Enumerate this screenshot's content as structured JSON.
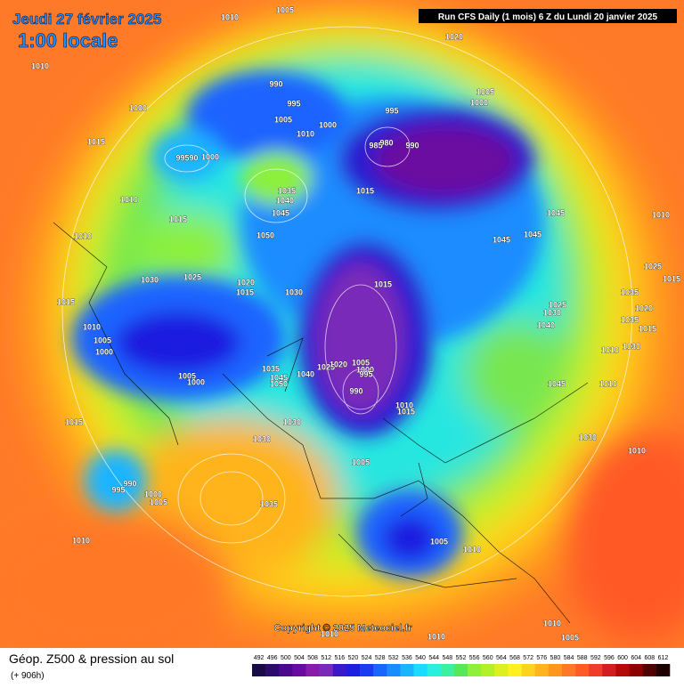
{
  "header": {
    "date": "Jeudi 27 février 2025",
    "time": "1:00 locale",
    "run": "Run CFS Daily (1 mois) 6 Z du Lundi 20 janvier 2025"
  },
  "map": {
    "pressure_labels": [
      "1010",
      "1005",
      "1020",
      "1010",
      "1000",
      "990",
      "995",
      "1005",
      "1010",
      "1000",
      "995",
      "985",
      "980",
      "990",
      "1005",
      "1000",
      "1015",
      "99590",
      "1000",
      "1035",
      "1040",
      "1045",
      "1015",
      "1010",
      "1015",
      "1010",
      "1050",
      "1045",
      "1045",
      "1045",
      "1010",
      "1025",
      "1015",
      "1030",
      "1025",
      "1020",
      "1015",
      "1030",
      "1015",
      "1015",
      "1010",
      "1005",
      "1000",
      "1025",
      "1030",
      "1040",
      "1035",
      "1035",
      "1015",
      "1020",
      "1030",
      "1010",
      "1005",
      "1000",
      "1035",
      "1045",
      "1050",
      "1040",
      "1025",
      "1020",
      "1005",
      "1000",
      "995",
      "990",
      "1010",
      "1015",
      "1045",
      "1010",
      "1015",
      "1030",
      "1030",
      "1030",
      "1010",
      "1005",
      "990",
      "995",
      "1000",
      "1005",
      "1035",
      "1010",
      "1005",
      "1010",
      "1010",
      "1005",
      "1010",
      "1010"
    ]
  },
  "copyright": "Copyright © 2025 Meteociel.fr",
  "footer": {
    "title": "Géop. Z500 & pression au sol",
    "lead": "(+ 906h)"
  },
  "colorbar": {
    "labels": [
      492,
      496,
      500,
      504,
      508,
      512,
      516,
      520,
      524,
      528,
      532,
      536,
      540,
      544,
      548,
      552,
      556,
      560,
      564,
      568,
      572,
      576,
      580,
      584,
      588,
      592,
      596,
      600,
      604,
      608,
      612
    ],
    "colors": [
      "#1a0a4a",
      "#2d0a6e",
      "#4b0a8c",
      "#6b0aa0",
      "#8a1aa8",
      "#7a2ab8",
      "#3a1ac8",
      "#1e1ee0",
      "#1a3cf0",
      "#1a64ff",
      "#1a8cff",
      "#1ab4ff",
      "#1adcff",
      "#28f0e0",
      "#3cf0a0",
      "#5ae65a",
      "#8cf03c",
      "#b4f028",
      "#dcf01e",
      "#fff01e",
      "#ffd21e",
      "#ffb41e",
      "#ff961e",
      "#ff7828",
      "#ff5a28",
      "#f03c28",
      "#d21e1e",
      "#b40a0a",
      "#8c0000",
      "#500000",
      "#1e0000"
    ]
  }
}
